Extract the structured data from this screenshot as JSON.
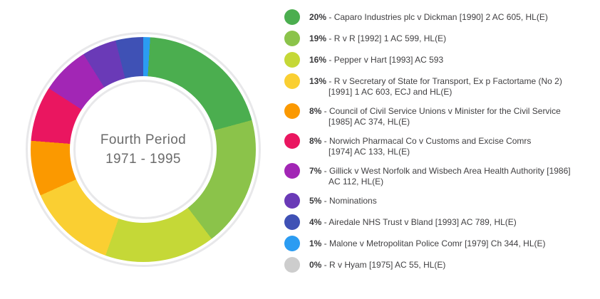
{
  "page": {
    "background": "#ffffff"
  },
  "chart_data": {
    "type": "pie",
    "variant": "donut",
    "legend_position": "right",
    "center_title": "Fourth Period",
    "center_subtitle": "1971 - 1995",
    "labels": [
      "Caparo Industries plc v Dickman [1990] 2 AC 605, HL(E)",
      "R v R [1992] 1 AC 599, HL(E)",
      "Pepper v Hart [1993] AC 593",
      "R v Secretary of State for Transport, Ex p Factortame (No 2) [1991] 1 AC 603, ECJ and HL(E)",
      "Council of Civil Service Unions v Minister for the Civil Service [1985] AC 374, HL(E)",
      "Norwich Pharmacal Co v Customs and Excise Comrs [1974] AC 133, HL(E)",
      "Gillick v West Norfolk and Wisbech Area Health Authority [1986] AC 112, HL(E)",
      "Nominations",
      "Airedale NHS Trust v Bland [1993] AC 789, HL(E)",
      "Malone v Metropolitan Police Comr [1979] Ch 344, HL(E)",
      "R v Hyam [1975] AC 55, HL(E)"
    ],
    "values": [
      20,
      19,
      16,
      13,
      8,
      8,
      7,
      5,
      4,
      1,
      0
    ],
    "colors": [
      "#4BAE4F",
      "#8BC34A",
      "#C5D837",
      "#FACF32",
      "#FB9900",
      "#EA1660",
      "#A226B5",
      "#6A3AB7",
      "#3F51B5",
      "#2B9CF2",
      "#CDCDCD"
    ],
    "slice_draw_order": [
      9,
      0,
      1,
      2,
      3,
      4,
      5,
      6,
      7,
      8
    ],
    "start_angle_deg": 0,
    "direction": "clockwise"
  },
  "legend": {
    "separator": " - ",
    "items": [
      {
        "pct": "20%",
        "value": 20,
        "color": "#4BAE4F",
        "line1": "Caparo Industries plc v Dickman [1990] 2 AC 605, HL(E)"
      },
      {
        "pct": "19%",
        "value": 19,
        "color": "#8BC34A",
        "line1": "R v R [1992] 1 AC 599, HL(E)"
      },
      {
        "pct": "16%",
        "value": 16,
        "color": "#C5D837",
        "line1": "Pepper v Hart [1993] AC 593"
      },
      {
        "pct": "13%",
        "value": 13,
        "color": "#FACF32",
        "line1": "R v Secretary of State for Transport, Ex p Factortame (No 2)",
        "line2": "[1991] 1 AC 603, ECJ and HL(E)"
      },
      {
        "pct": "8%",
        "value": 8,
        "color": "#FB9900",
        "line1": "Council of Civil Service Unions v Minister for the Civil Service",
        "line2": "[1985] AC 374, HL(E)"
      },
      {
        "pct": "8%",
        "value": 8,
        "color": "#EA1660",
        "line1": "Norwich Pharmacal Co v Customs and Excise Comrs",
        "line2": "[1974] AC 133, HL(E)"
      },
      {
        "pct": "7%",
        "value": 7,
        "color": "#A226B5",
        "line1": "Gillick v West Norfolk and Wisbech Area Health Authority [1986]",
        "line2": "AC 112, HL(E)"
      },
      {
        "pct": "5%",
        "value": 5,
        "color": "#6A3AB7",
        "line1": "Nominations"
      },
      {
        "pct": "4%",
        "value": 4,
        "color": "#3F51B5",
        "line1": "Airedale NHS Trust v Bland [1993] AC 789, HL(E)"
      },
      {
        "pct": "1%",
        "value": 1,
        "color": "#2B9CF2",
        "line1": "Malone v Metropolitan Police Comr [1979] Ch 344, HL(E)"
      },
      {
        "pct": "0%",
        "value": 0,
        "color": "#CDCDCD",
        "line1": "R v Hyam [1975] AC 55, HL(E)"
      }
    ]
  },
  "colors": {
    "accent_ring": "#e8e8ea",
    "center_text": "#6b6b6b",
    "legend_text": "#414042"
  }
}
